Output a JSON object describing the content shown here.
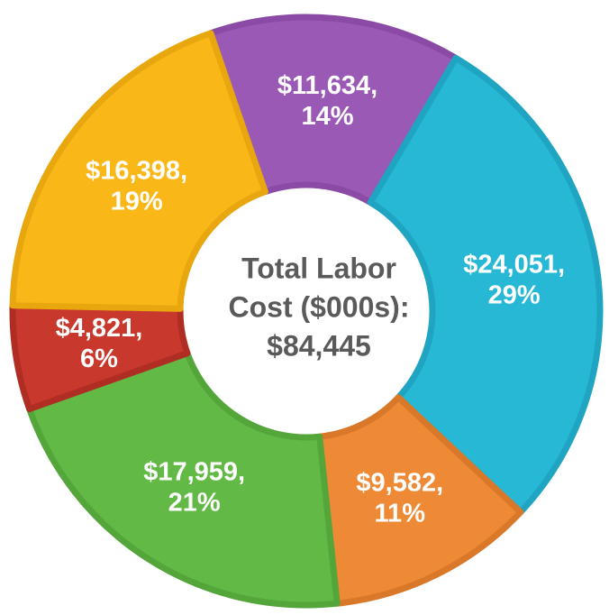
{
  "chart_data": {
    "type": "donut",
    "categories": [
      "Purple",
      "Cyan",
      "Orange",
      "Green",
      "Red",
      "Yellow"
    ],
    "values": [
      11634,
      24051,
      9582,
      17959,
      4821,
      16398
    ],
    "value_labels": [
      "$11,634,",
      "$24,051,",
      "$9,582,",
      "$17,959,",
      "$4,821,",
      "$16,398,"
    ],
    "percentages": [
      14,
      29,
      11,
      21,
      6,
      19
    ],
    "percentage_labels": [
      "14%",
      "29%",
      "11%",
      "21%",
      "6%",
      "19%"
    ],
    "colors": [
      "#9b59b6",
      "#27b8d6",
      "#ee8a35",
      "#63b946",
      "#c9382d",
      "#f9b818"
    ],
    "border_colors": [
      "#8a4aa6",
      "#1fa5c2",
      "#d87828",
      "#54a63a",
      "#b02d23",
      "#e8a70f"
    ],
    "center_text": [
      "Total Labor",
      "Cost ($000s):",
      "$84,445"
    ]
  }
}
